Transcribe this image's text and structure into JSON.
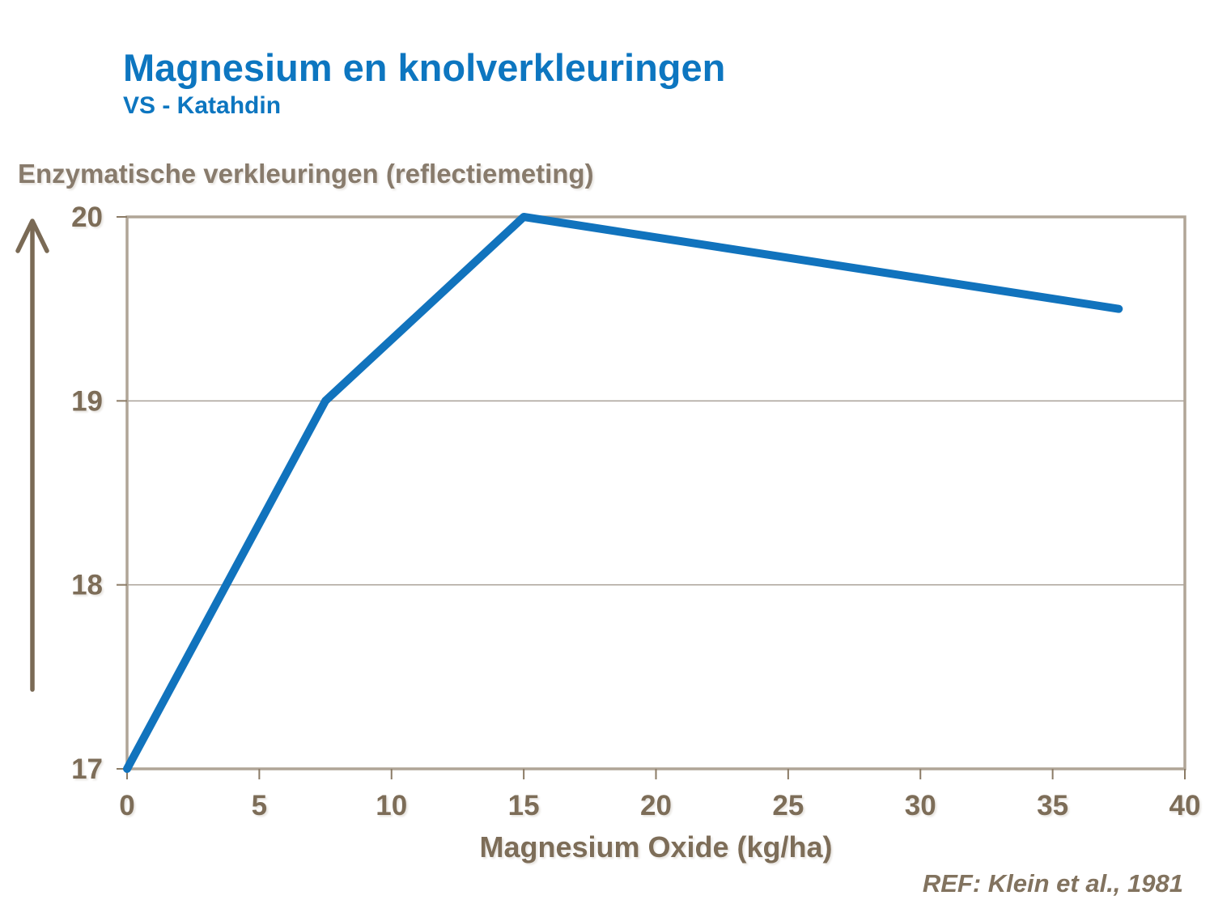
{
  "slide": {
    "title": "Magnesium en knolverkleuringen",
    "subtitle": "VS - Katahdin",
    "reference": "REF: Klein et al., 1981"
  },
  "chart_data": {
    "type": "line",
    "title": "",
    "ylabel": "Enzymatische verkleuringen (reflectiemeting)",
    "xlabel": "Magnesium Oxide (kg/ha)",
    "x": [
      0,
      7.5,
      15,
      37.5
    ],
    "y": [
      17,
      19,
      20,
      19.5
    ],
    "xlim": [
      0,
      40
    ],
    "ylim": [
      17,
      20
    ],
    "xticks": [
      0,
      5,
      10,
      15,
      20,
      25,
      30,
      35,
      40
    ],
    "yticks": [
      17,
      18,
      19,
      20
    ],
    "gridlines_y": [
      18,
      19
    ],
    "grid": "horizontal-only",
    "legend_position": "none"
  },
  "colors": {
    "title_blue": "#0d76c0",
    "line_blue": "#1173bd",
    "axis_text_taupe": "#7d6d58",
    "frame_taupe": "#b0a597",
    "gridline_gray": "#a9a097",
    "arrow_taupe": "#7a6a55"
  }
}
